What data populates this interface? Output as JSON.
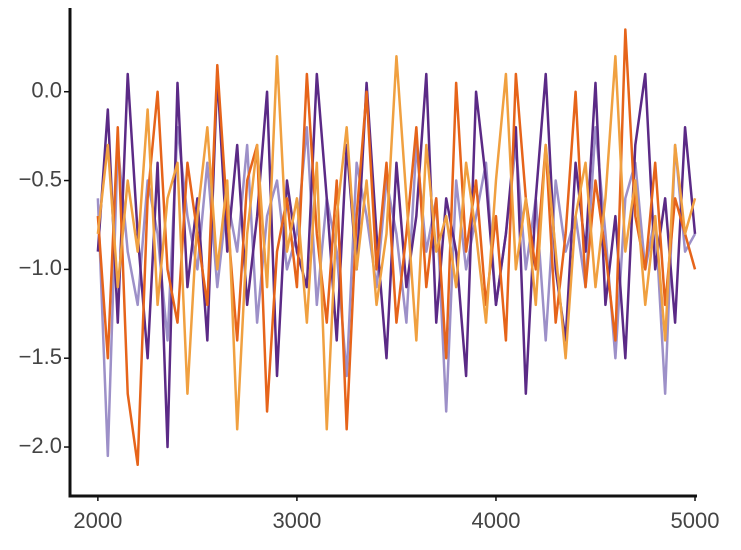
{
  "chart_data": {
    "type": "line",
    "x": [
      2000,
      2050,
      2100,
      2150,
      2200,
      2250,
      2300,
      2350,
      2400,
      2450,
      2500,
      2550,
      2600,
      2650,
      2700,
      2750,
      2800,
      2850,
      2900,
      2950,
      3000,
      3050,
      3100,
      3150,
      3200,
      3250,
      3300,
      3350,
      3400,
      3450,
      3500,
      3550,
      3600,
      3650,
      3700,
      3750,
      3800,
      3850,
      3900,
      3950,
      4000,
      4050,
      4100,
      4150,
      4200,
      4250,
      4300,
      4350,
      4400,
      4450,
      4500,
      4550,
      4600,
      4650,
      4700,
      4750,
      4800,
      4850,
      4900,
      4950,
      5000
    ],
    "series": [
      {
        "color": "#9d90c8",
        "values": [
          -0.6,
          -2.05,
          -0.3,
          -0.9,
          -1.2,
          -0.5,
          -0.8,
          -1.4,
          -0.2,
          -0.7,
          -1.0,
          -0.4,
          -1.1,
          -0.6,
          -0.9,
          -0.3,
          -1.3,
          -0.7,
          -0.5,
          -1.0,
          -0.8,
          -0.2,
          -1.2,
          -0.6,
          -0.9,
          -1.6,
          -0.4,
          -0.7,
          -1.1,
          -0.5,
          -0.8,
          -1.3,
          -0.3,
          -0.9,
          -0.6,
          -1.8,
          -0.5,
          -1.0,
          -0.7,
          -0.4,
          -1.2,
          -0.8,
          -0.3,
          -1.0,
          -0.6,
          -1.4,
          -0.5,
          -0.9,
          -0.7,
          -1.1,
          -0.2,
          -0.8,
          -1.5,
          -0.6,
          -0.4,
          -1.0,
          -0.7,
          -1.7,
          -0.3,
          -0.9,
          -0.8
        ]
      },
      {
        "color": "#5b2a86",
        "values": [
          -0.9,
          -0.1,
          -1.3,
          0.1,
          -0.8,
          -1.5,
          -0.4,
          -2.0,
          0.05,
          -1.1,
          -0.6,
          -1.4,
          0.1,
          -0.9,
          -0.3,
          -1.2,
          -0.7,
          0.0,
          -1.6,
          -0.5,
          -0.9,
          -1.1,
          0.1,
          -0.6,
          -1.4,
          -0.3,
          -1.0,
          0.05,
          -0.8,
          -1.5,
          -0.4,
          -1.1,
          -0.7,
          0.1,
          -1.3,
          -0.6,
          -0.9,
          -1.6,
          0.0,
          -0.5,
          -1.2,
          -0.8,
          -0.2,
          -1.7,
          -0.6,
          0.1,
          -1.0,
          -1.4,
          -0.4,
          -0.9,
          0.05,
          -1.2,
          -0.7,
          -1.5,
          -0.3,
          0.1,
          -1.0,
          -0.6,
          -1.3,
          -0.2,
          -0.8
        ]
      },
      {
        "color": "#e6641a",
        "values": [
          -0.7,
          -1.5,
          -0.2,
          -1.7,
          -2.1,
          -0.6,
          0.0,
          -1.0,
          -1.3,
          -0.4,
          -0.8,
          -1.2,
          0.15,
          -0.7,
          -1.4,
          -0.5,
          -0.3,
          -1.8,
          -0.9,
          -0.6,
          -1.1,
          0.1,
          -0.8,
          -1.3,
          -0.5,
          -1.9,
          -0.7,
          0.0,
          -1.0,
          -0.4,
          -1.3,
          -0.8,
          -0.2,
          -1.1,
          -0.6,
          -1.5,
          0.05,
          -0.9,
          -0.5,
          -1.2,
          -0.7,
          -1.4,
          0.1,
          -0.6,
          -1.0,
          -0.3,
          -1.3,
          -0.8,
          0.0,
          -1.1,
          -0.5,
          -0.9,
          -1.4,
          0.35,
          -0.7,
          -1.0,
          -0.4,
          -1.2,
          -0.6,
          -0.8,
          -1.0
        ]
      },
      {
        "color": "#f0a040",
        "values": [
          -0.8,
          -0.3,
          -1.1,
          -0.5,
          -0.9,
          -0.1,
          -1.2,
          -0.6,
          -0.4,
          -1.7,
          -0.7,
          -0.2,
          -1.0,
          -0.5,
          -1.9,
          -0.8,
          -0.3,
          -1.1,
          0.2,
          -0.9,
          -0.6,
          -1.3,
          -0.4,
          -1.9,
          -0.7,
          -0.2,
          -1.0,
          -0.5,
          -1.2,
          -0.8,
          0.2,
          -0.6,
          -1.4,
          -0.3,
          -0.9,
          -0.7,
          -1.1,
          -0.4,
          -0.8,
          -1.3,
          -0.5,
          0.1,
          -1.0,
          -0.6,
          -1.2,
          -0.3,
          -0.9,
          -1.5,
          -0.7,
          -0.4,
          -1.1,
          -0.6,
          0.2,
          -0.9,
          -0.5,
          -1.2,
          -0.7,
          -1.4,
          -0.3,
          -0.8,
          -0.6
        ]
      }
    ],
    "xlim": [
      1860,
      5010
    ],
    "ylim": [
      -2.27,
      0.46
    ],
    "xticks": [
      2000,
      3000,
      4000,
      5000
    ],
    "yticks": [
      {
        "value": 0,
        "label": "0.0"
      },
      {
        "value": -0.5,
        "label": "−0.5"
      },
      {
        "value": -1,
        "label": "−1.0"
      },
      {
        "value": -1.5,
        "label": "−1.5"
      },
      {
        "value": -2,
        "label": "−2.0"
      }
    ]
  }
}
